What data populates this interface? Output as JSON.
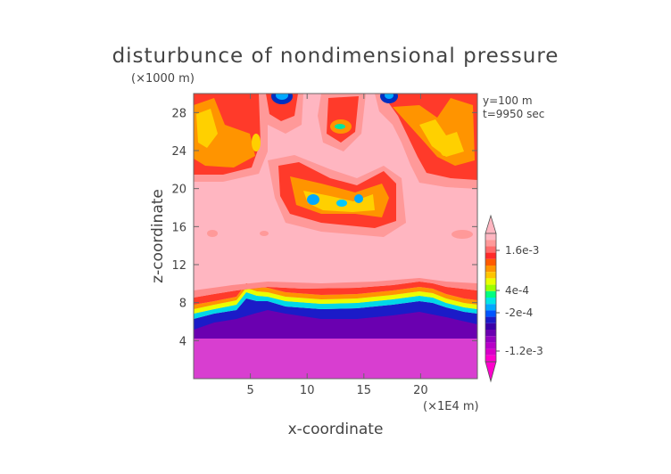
{
  "chart_data": {
    "type": "heatmap",
    "title": "disturbunce of nondimensional pressure",
    "xlabel": "x-coordinate",
    "ylabel": "z-coordinate",
    "x_unit": "(×1E4 m)",
    "z_unit": "(×1000 m)",
    "xlim": [
      0,
      25
    ],
    "ylim": [
      0,
      30
    ],
    "x_ticks": [
      5,
      10,
      15,
      20
    ],
    "y_ticks": [
      4,
      8,
      12,
      16,
      20,
      24,
      28
    ],
    "annotations": [
      "y=100 m",
      "t=9950 sec"
    ],
    "colorbar": {
      "labels": [
        "1.6e-3",
        "4e-4",
        "-2e-4",
        "-1.2e-3"
      ],
      "colors": [
        "#ffb6c1",
        "#ff9999",
        "#ff6b6b",
        "#ff2a2a",
        "#ff5a00",
        "#ff9400",
        "#ffc400",
        "#eaff00",
        "#9cff00",
        "#00ff7f",
        "#00e6e6",
        "#00a8ff",
        "#0055ff",
        "#1b1bc8",
        "#3a00a8",
        "#6a00b0",
        "#9400c0",
        "#b800c8",
        "#d800c8",
        "#ff00cc"
      ],
      "arrows": "both"
    },
    "pattern": [
      {
        "z": [
          0,
          5
        ],
        "x": [
          0,
          25
        ],
        "level": "min",
        "color": "#d83ed0"
      },
      {
        "z": [
          5,
          9
        ],
        "x": [
          0,
          25
        ],
        "level": "strong negative to weak positive (layered transition)",
        "color": "#1f3fd0"
      },
      {
        "z": [
          9.5,
          10
        ],
        "x": [
          0,
          25
        ],
        "level": "1.6e-3 band",
        "color": "#ff5a3a"
      },
      {
        "z": [
          10,
          30
        ],
        "x": [
          0,
          25
        ],
        "level": "background positive",
        "color": "#ffb6c1"
      },
      {
        "z": [
          17,
          21
        ],
        "x": [
          9,
          19
        ],
        "level": "local minima cells",
        "color": "#00a0ff"
      },
      {
        "z": [
          22,
          28
        ],
        "x": [
          0,
          3.5
        ],
        "level": "positive ridge",
        "color": "#ff9400"
      },
      {
        "z": [
          28,
          30
        ],
        "x": [
          7,
          9
        ],
        "level": "local minimum",
        "color": "#0030c0"
      }
    ]
  }
}
